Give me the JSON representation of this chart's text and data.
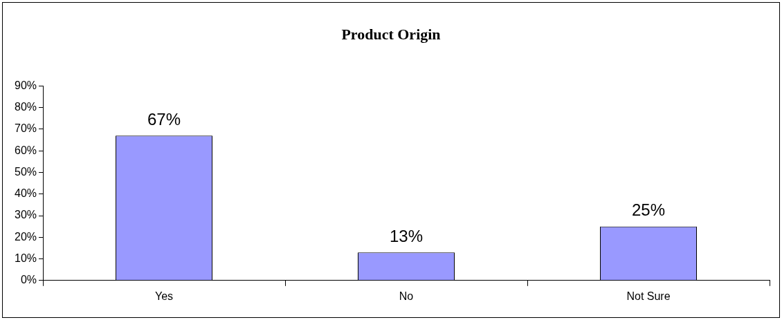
{
  "chart_data": {
    "type": "bar",
    "title": "Product Origin",
    "categories": [
      "Yes",
      "No",
      "Not Sure"
    ],
    "values": [
      67,
      13,
      25
    ],
    "color": "#9999ff",
    "ylim": [
      0,
      90
    ],
    "yticks": [
      {
        "value": 0,
        "label": "0%"
      },
      {
        "value": 10,
        "label": "10%"
      },
      {
        "value": 20,
        "label": "20%"
      },
      {
        "value": 30,
        "label": "30%"
      },
      {
        "value": 40,
        "label": "40%"
      },
      {
        "value": 50,
        "label": "50%"
      },
      {
        "value": 60,
        "label": "60%"
      },
      {
        "value": 70,
        "label": "70%"
      },
      {
        "value": 80,
        "label": "80%"
      },
      {
        "value": 90,
        "label": "90%"
      }
    ],
    "value_labels": [
      "67%",
      "13%",
      "25%"
    ],
    "grid": false,
    "legend": false
  }
}
